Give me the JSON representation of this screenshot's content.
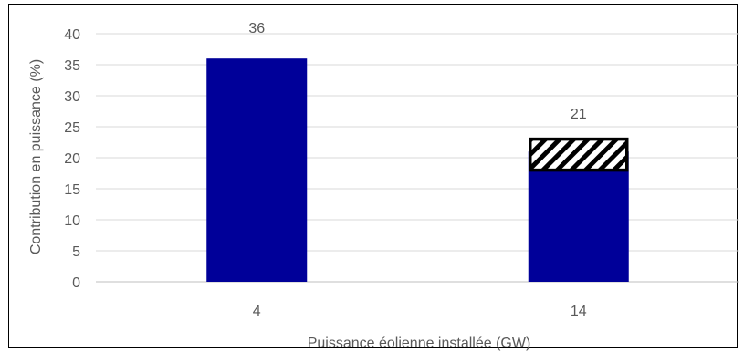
{
  "chart_data": {
    "type": "bar",
    "categories": [
      "4",
      "14"
    ],
    "values": [
      36,
      21
    ],
    "data_labels": [
      "36",
      "21"
    ],
    "uncertainty_range": [
      {
        "category": "14",
        "low": 18,
        "high": 23
      }
    ],
    "xlabel": "Puissance éolienne installée (GW)",
    "ylabel": "Contribution en puissance (%)",
    "ylim": [
      0,
      40
    ],
    "yticks": [
      0,
      5,
      10,
      15,
      20,
      25,
      30,
      35,
      40
    ],
    "grid": true,
    "colors": {
      "bar": "#000099",
      "grid": "#d9d9d9",
      "axis": "#bfbfbf",
      "hatch": "#000000"
    }
  }
}
